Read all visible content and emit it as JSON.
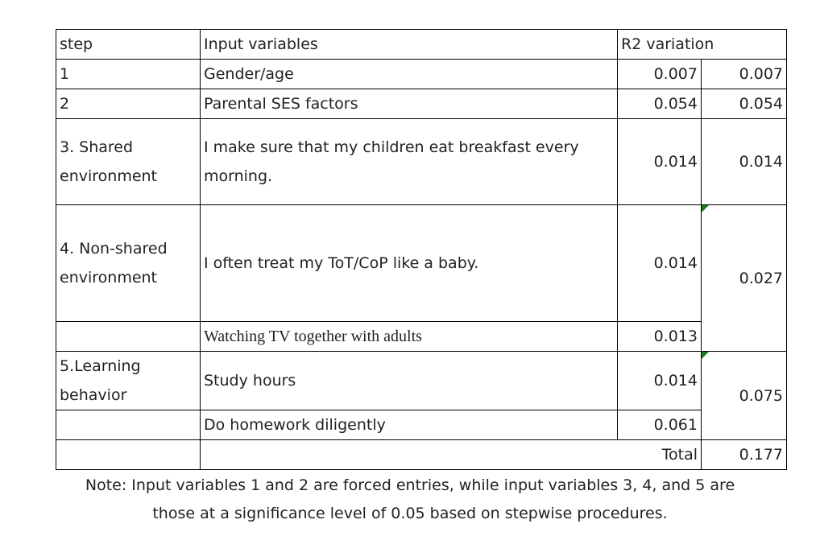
{
  "header": {
    "step": "step",
    "input_variables": "Input variables",
    "r2_variation": "R2 variation"
  },
  "rows": [
    {
      "step": "1",
      "variable": "Gender/age",
      "r2": "0.007",
      "group_r2": "0.007"
    },
    {
      "step": "2",
      "variable": "Parental SES factors",
      "r2": "0.054",
      "group_r2": "0.054"
    },
    {
      "step": "3. Shared environment",
      "variable": "I make sure that my children eat breakfast every morning.",
      "r2": "0.014",
      "group_r2": "0.014"
    },
    {
      "step": "4. Non-shared environment",
      "variable": "I often treat my ToT/CoP like a baby.",
      "r2": "0.014",
      "group_r2": "0.027"
    },
    {
      "step": "",
      "variable": "Watching TV together with adults",
      "r2": "0.013"
    },
    {
      "step": "5.Learning behavior",
      "variable": "Study hours",
      "r2": "0.014",
      "group_r2": "0.075"
    },
    {
      "step": "",
      "variable": "Do homework diligently",
      "r2": "0.061"
    }
  ],
  "total": {
    "label": "Total",
    "value": "0.177"
  },
  "note": {
    "line1": "Note: Input variables 1 and 2 are forced entries, while input variables 3, 4, and 5 are",
    "line2": "those at a significance level of 0.05 based on stepwise procedures."
  },
  "colors": {
    "border": "#000000",
    "text": "#222222",
    "comment_marker": "#1e7b1e"
  }
}
